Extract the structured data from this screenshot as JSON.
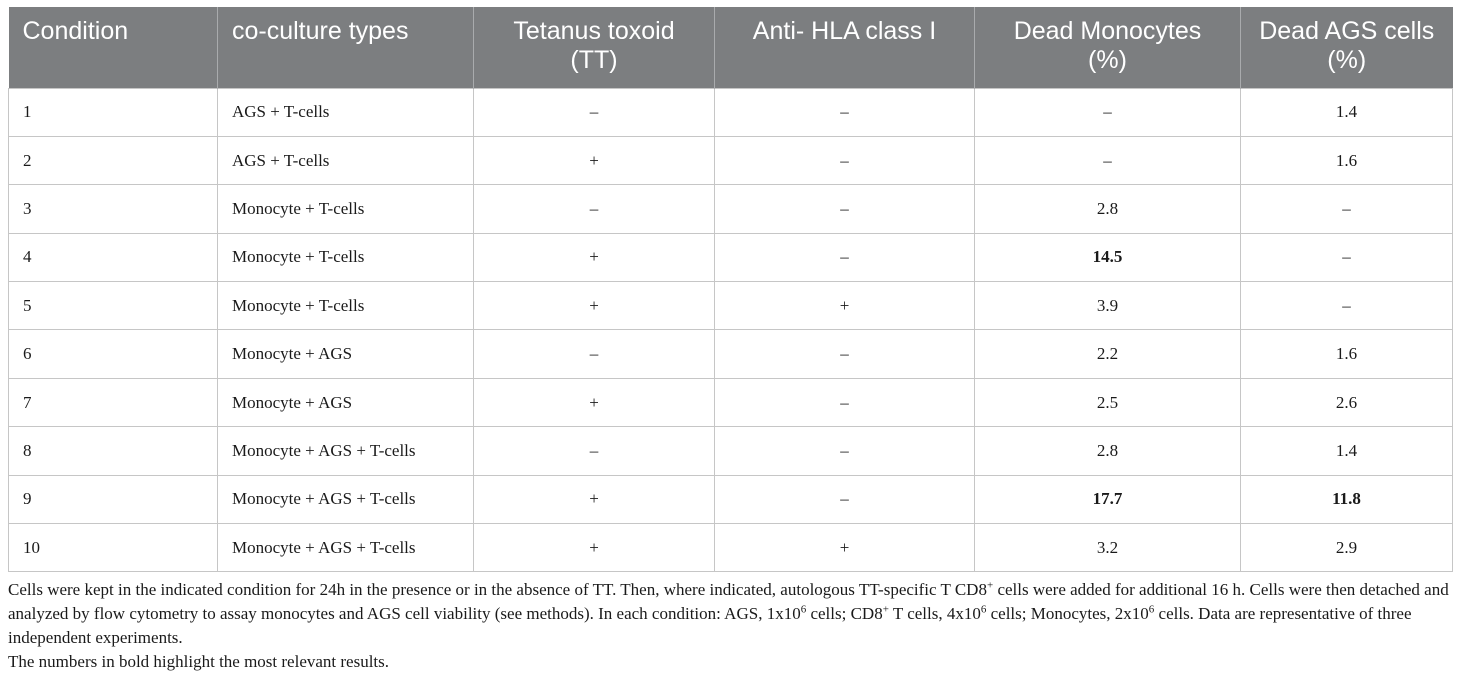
{
  "table": {
    "headers": [
      {
        "line1": "Condition",
        "line2": ""
      },
      {
        "line1": "co-culture types",
        "line2": ""
      },
      {
        "line1": "Tetanus toxoid",
        "line2": "(TT)"
      },
      {
        "line1": "Anti- HLA class I",
        "line2": ""
      },
      {
        "line1": "Dead Monocytes",
        "line2": "(%)"
      },
      {
        "line1": "Dead AGS cells",
        "line2": "(%)"
      }
    ],
    "rows": [
      {
        "condition": "1",
        "type": "AGS + T-cells",
        "tt": "–",
        "hla": "–",
        "monocytes": "–",
        "ags": "1.4"
      },
      {
        "condition": "2",
        "type": "AGS + T-cells",
        "tt": "+",
        "hla": "–",
        "monocytes": "–",
        "ags": "1.6"
      },
      {
        "condition": "3",
        "type": "Monocyte + T-cells",
        "tt": "–",
        "hla": "–",
        "monocytes": "2.8",
        "ags": "–"
      },
      {
        "condition": "4",
        "type": "Monocyte + T-cells",
        "tt": "+",
        "hla": "–",
        "monocytes": "14.5",
        "ags": "–"
      },
      {
        "condition": "5",
        "type": "Monocyte + T-cells",
        "tt": "+",
        "hla": "+",
        "monocytes": "3.9",
        "ags": "–"
      },
      {
        "condition": "6",
        "type": "Monocyte + AGS",
        "tt": "–",
        "hla": "–",
        "monocytes": "2.2",
        "ags": "1.6"
      },
      {
        "condition": "7",
        "type": "Monocyte + AGS",
        "tt": "+",
        "hla": "–",
        "monocytes": "2.5",
        "ags": "2.6"
      },
      {
        "condition": "8",
        "type": "Monocyte + AGS + T-cells",
        "tt": "–",
        "hla": "–",
        "monocytes": "2.8",
        "ags": "1.4"
      },
      {
        "condition": "9",
        "type": "Monocyte + AGS + T-cells",
        "tt": "+",
        "hla": "–",
        "monocytes": "17.7",
        "ags": "11.8"
      },
      {
        "condition": "10",
        "type": "Monocyte + AGS + T-cells",
        "tt": "+",
        "hla": "+",
        "monocytes": "3.2",
        "ags": "2.9"
      }
    ],
    "bold_cells": [
      "3.monocytes",
      "8.monocytes",
      "8.ags"
    ]
  },
  "notes": {
    "p1_a": "Cells were kept in the indicated condition for 24h in the presence or in the absence of TT. Then, where indicated, autologous TT-specific T CD8",
    "p1_sup1": "+",
    "p1_b": " cells were added for additional 16 h. Cells were then detached and analyzed by flow cytometry to assay monocytes and AGS cell viability (see methods). In each condition: AGS, 1x10",
    "p1_sup2": "6",
    "p1_c": " cells; CD8",
    "p1_sup3": "+",
    "p1_d": " T cells, 4x10",
    "p1_sup4": "6",
    "p1_e": " cells; Monocytes, 2x10",
    "p1_sup5": "6",
    "p1_f": " cells. Data are representative of three independent experiments.",
    "p2": "The numbers in bold highlight the most relevant results."
  }
}
